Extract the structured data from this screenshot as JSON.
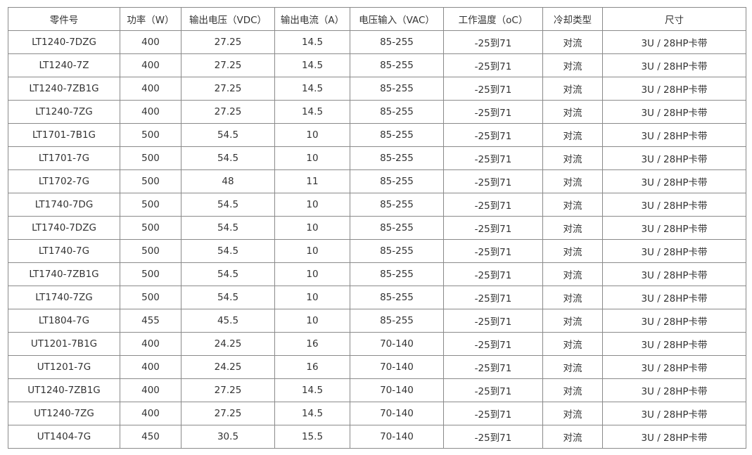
{
  "table": {
    "headers": [
      "零件号",
      "功率（W）",
      "输出电压（VDC）",
      "输出电流（A）",
      "电压输入（VAC）",
      "工作温度（oC）",
      "冷却类型",
      "尺寸"
    ],
    "rows": [
      [
        "LT1240-7DZG",
        "400",
        "27.25",
        "14.5",
        "85-255",
        "-25到71",
        "对流",
        "3U / 28HP卡带"
      ],
      [
        "LT1240-7Z",
        "400",
        "27.25",
        "14.5",
        "85-255",
        "-25到71",
        "对流",
        "3U / 28HP卡带"
      ],
      [
        "LT1240-7ZB1G",
        "400",
        "27.25",
        "14.5",
        "85-255",
        "-25到71",
        "对流",
        "3U / 28HP卡带"
      ],
      [
        "LT1240-7ZG",
        "400",
        "27.25",
        "14.5",
        "85-255",
        "-25到71",
        "对流",
        "3U / 28HP卡带"
      ],
      [
        "LT1701-7B1G",
        "500",
        "54.5",
        "10",
        "85-255",
        "-25到71",
        "对流",
        "3U / 28HP卡带"
      ],
      [
        "LT1701-7G",
        "500",
        "54.5",
        "10",
        "85-255",
        "-25到71",
        "对流",
        "3U / 28HP卡带"
      ],
      [
        "LT1702-7G",
        "500",
        "48",
        "11",
        "85-255",
        "-25到71",
        "对流",
        "3U / 28HP卡带"
      ],
      [
        "LT1740-7DG",
        "500",
        "54.5",
        "10",
        "85-255",
        "-25到71",
        "对流",
        "3U / 28HP卡带"
      ],
      [
        "LT1740-7DZG",
        "500",
        "54.5",
        "10",
        "85-255",
        "-25到71",
        "对流",
        "3U / 28HP卡带"
      ],
      [
        "LT1740-7G",
        "500",
        "54.5",
        "10",
        "85-255",
        "-25到71",
        "对流",
        "3U / 28HP卡带"
      ],
      [
        "LT1740-7ZB1G",
        "500",
        "54.5",
        "10",
        "85-255",
        "-25到71",
        "对流",
        "3U / 28HP卡带"
      ],
      [
        "LT1740-7ZG",
        "500",
        "54.5",
        "10",
        "85-255",
        "-25到71",
        "对流",
        "3U / 28HP卡带"
      ],
      [
        "LT1804-7G",
        "455",
        "45.5",
        "10",
        "85-255",
        "-25到71",
        "对流",
        "3U / 28HP卡带"
      ],
      [
        "UT1201-7B1G",
        "400",
        "24.25",
        "16",
        "70-140",
        "-25到71",
        "对流",
        "3U / 28HP卡带"
      ],
      [
        "UT1201-7G",
        "400",
        "24.25",
        "16",
        "70-140",
        "-25到71",
        "对流",
        "3U / 28HP卡带"
      ],
      [
        "UT1240-7ZB1G",
        "400",
        "27.25",
        "14.5",
        "70-140",
        "-25到71",
        "对流",
        "3U / 28HP卡带"
      ],
      [
        "UT1240-7ZG",
        "400",
        "27.25",
        "14.5",
        "70-140",
        "-25到71",
        "对流",
        "3U / 28HP卡带"
      ],
      [
        "UT1404-7G",
        "450",
        "30.5",
        "15.5",
        "70-140",
        "-25到71",
        "对流",
        "3U / 28HP卡带"
      ]
    ]
  }
}
